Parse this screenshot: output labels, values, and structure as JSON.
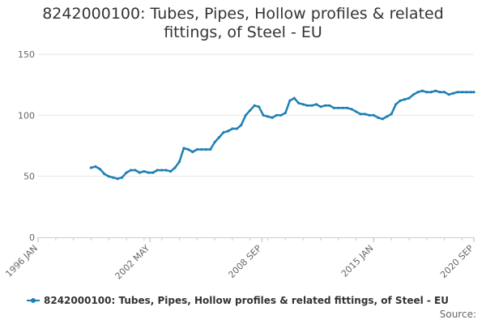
{
  "title_line1": "8242000100: Tubes, Pipes, Hollow profiles & related",
  "title_line2": "fittings, of Steel - EU",
  "legend_label": "8242000100: Tubes, Pipes, Hollow profiles & related fittings, of Steel - EU",
  "source_label": "Source:",
  "colors": {
    "series": "#1f7fb4",
    "grid": "#e6e6e6",
    "axis_text": "#666666"
  },
  "chart_data": {
    "type": "line",
    "title": "8242000100: Tubes, Pipes, Hollow profiles & related fittings, of Steel - EU",
    "xlabel": "",
    "ylabel": "",
    "ylim": [
      0,
      150
    ],
    "y_ticks": [
      0,
      50,
      100,
      150
    ],
    "xlim": [
      "1996-01",
      "2020-09"
    ],
    "x_tick_labels": [
      "1996 JAN",
      "2002 MAY",
      "2008 SEP",
      "2015 JAN",
      "2020 SEP"
    ],
    "grid": "horizontal",
    "legend_position": "bottom",
    "series": [
      {
        "name": "8242000100: Tubes, Pipes, Hollow profiles & related fittings, of Steel - EU",
        "x": [
          "1999-01",
          "1999-04",
          "1999-07",
          "1999-10",
          "2000-01",
          "2000-04",
          "2000-07",
          "2000-10",
          "2001-01",
          "2001-04",
          "2001-07",
          "2001-10",
          "2002-01",
          "2002-04",
          "2002-07",
          "2002-10",
          "2003-01",
          "2003-04",
          "2003-07",
          "2003-10",
          "2004-01",
          "2004-04",
          "2004-07",
          "2004-10",
          "2005-01",
          "2005-04",
          "2005-07",
          "2005-10",
          "2006-01",
          "2006-04",
          "2006-07",
          "2006-10",
          "2007-01",
          "2007-04",
          "2007-07",
          "2007-10",
          "2008-01",
          "2008-04",
          "2008-07",
          "2008-10",
          "2009-01",
          "2009-04",
          "2009-07",
          "2009-10",
          "2010-01",
          "2010-04",
          "2010-07",
          "2010-10",
          "2011-01",
          "2011-04",
          "2011-07",
          "2011-10",
          "2012-01",
          "2012-04",
          "2012-07",
          "2012-10",
          "2013-01",
          "2013-04",
          "2013-07",
          "2013-10",
          "2014-01",
          "2014-04",
          "2014-07",
          "2014-10",
          "2015-01",
          "2015-04",
          "2015-07",
          "2015-10",
          "2016-01",
          "2016-04",
          "2016-07",
          "2016-10",
          "2017-01",
          "2017-04",
          "2017-07",
          "2017-10",
          "2018-01",
          "2018-04",
          "2018-07",
          "2018-10",
          "2019-01",
          "2019-04",
          "2019-07",
          "2019-10",
          "2020-01",
          "2020-04",
          "2020-07",
          "2020-09"
        ],
        "values": [
          57,
          58,
          56,
          52,
          50,
          49,
          48,
          49,
          53,
          55,
          55,
          53,
          54,
          53,
          53,
          55,
          55,
          55,
          54,
          57,
          62,
          73,
          72,
          70,
          72,
          72,
          72,
          72,
          78,
          82,
          86,
          87,
          89,
          89,
          92,
          100,
          104,
          108,
          107,
          100,
          99,
          98,
          100,
          100,
          102,
          112,
          114,
          110,
          109,
          108,
          108,
          109,
          107,
          108,
          108,
          106,
          106,
          106,
          106,
          105,
          103,
          101,
          101,
          100,
          100,
          98,
          97,
          99,
          101,
          109,
          112,
          113,
          114,
          117,
          119,
          120,
          119,
          119,
          120,
          119,
          119,
          117,
          118,
          119,
          119,
          119,
          119,
          119
        ]
      }
    ]
  }
}
